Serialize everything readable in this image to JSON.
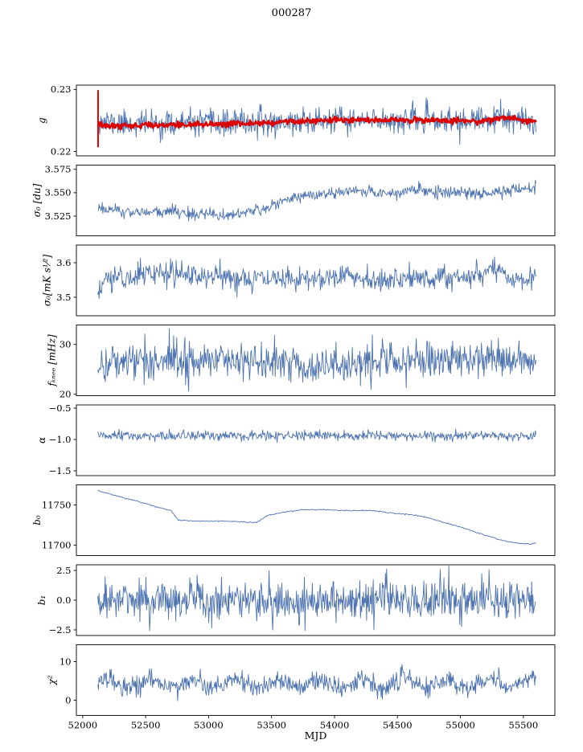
{
  "chart_data": {
    "type": "line",
    "title": "000287",
    "xlabel": "MJD",
    "xlim": [
      51950,
      55750
    ],
    "x_data_range": [
      52120,
      55600
    ],
    "xticks": [
      [
        52000,
        "52000"
      ],
      [
        52500,
        "52500"
      ],
      [
        53000,
        "53000"
      ],
      [
        53500,
        "53500"
      ],
      [
        54000,
        "54000"
      ],
      [
        54500,
        "54500"
      ],
      [
        55000,
        "55000"
      ],
      [
        55500,
        "55500"
      ]
    ],
    "colors": {
      "blue": "#4c72b0",
      "red": "#dc0000",
      "axis": "#000000"
    },
    "panels": [
      {
        "ylabel": "g",
        "ylim": [
          0.2193,
          0.2307
        ],
        "yticks": [
          [
            0.23,
            "0.23"
          ],
          [
            0.22,
            "0.22"
          ]
        ],
        "series": [
          {
            "name": "gain-fit",
            "color": "blue",
            "lw": 0.9,
            "n_points": 720,
            "seed": 11,
            "noise_std": 0.00105,
            "trend": [
              [
                52120,
                0.2253
              ],
              [
                52160,
                0.2247
              ],
              [
                52300,
                0.2245
              ],
              [
                52700,
                0.2244
              ],
              [
                53100,
                0.2245
              ],
              [
                53400,
                0.2246
              ],
              [
                53700,
                0.2248
              ],
              [
                54000,
                0.225
              ],
              [
                54200,
                0.2249
              ],
              [
                54500,
                0.2251
              ],
              [
                54800,
                0.225
              ],
              [
                55000,
                0.2248
              ],
              [
                55200,
                0.2251
              ],
              [
                55320,
                0.2253
              ],
              [
                55450,
                0.2248
              ],
              [
                55600,
                0.2247
              ]
            ]
          },
          {
            "name": "gain-smoothed",
            "color": "red",
            "lw": 2.6,
            "n_points": 620,
            "seed": 12,
            "noise_std": 0.00022,
            "trend": [
              [
                52120,
                0.2243
              ],
              [
                52200,
                0.2241
              ],
              [
                52400,
                0.2242
              ],
              [
                52700,
                0.2243
              ],
              [
                53000,
                0.2244
              ],
              [
                53300,
                0.2245
              ],
              [
                53500,
                0.2247
              ],
              [
                53700,
                0.2249
              ],
              [
                53900,
                0.225
              ],
              [
                54100,
                0.2251
              ],
              [
                54300,
                0.225
              ],
              [
                54500,
                0.2251
              ],
              [
                54700,
                0.2251
              ],
              [
                54900,
                0.225
              ],
              [
                55100,
                0.2249
              ],
              [
                55250,
                0.2251
              ],
              [
                55350,
                0.2256
              ],
              [
                55450,
                0.2252
              ],
              [
                55550,
                0.2249
              ],
              [
                55600,
                0.2248
              ]
            ]
          }
        ],
        "spikes": [
          {
            "x": 52122,
            "y0": 0.2207,
            "y1": 0.2299,
            "color": "red",
            "lw": 2
          }
        ]
      },
      {
        "ylabel": "σ₀ [du]",
        "ylim": [
          3.504,
          3.5795
        ],
        "yticks": [
          [
            3.575,
            "3.575"
          ],
          [
            3.55,
            "3.550"
          ],
          [
            3.525,
            "3.525"
          ]
        ],
        "series": [
          {
            "name": "sigma0-du",
            "color": "blue",
            "lw": 0.9,
            "n_points": 700,
            "seed": 21,
            "noise_std": 0.0033,
            "trend": [
              [
                52120,
                3.535
              ],
              [
                52250,
                3.53
              ],
              [
                52450,
                3.529
              ],
              [
                52700,
                3.53
              ],
              [
                52900,
                3.527
              ],
              [
                53100,
                3.526
              ],
              [
                53250,
                3.528
              ],
              [
                53400,
                3.532
              ],
              [
                53550,
                3.539
              ],
              [
                53700,
                3.546
              ],
              [
                53850,
                3.548
              ],
              [
                54000,
                3.549
              ],
              [
                54150,
                3.552
              ],
              [
                54300,
                3.551
              ],
              [
                54450,
                3.548
              ],
              [
                54600,
                3.552
              ],
              [
                54750,
                3.553
              ],
              [
                54900,
                3.55
              ],
              [
                55050,
                3.551
              ],
              [
                55200,
                3.549
              ],
              [
                55350,
                3.552
              ],
              [
                55600,
                3.556
              ]
            ]
          }
        ],
        "spikes": []
      },
      {
        "ylabel": "σ₀[mK s¹⁄²]",
        "ylim": [
          3.4465,
          3.6512
        ],
        "yticks": [
          [
            3.6,
            "3.6"
          ],
          [
            3.5,
            "3.5"
          ]
        ],
        "series": [
          {
            "name": "sigma0-mks",
            "color": "blue",
            "lw": 0.9,
            "n_points": 700,
            "seed": 31,
            "noise_std": 0.017,
            "trend": [
              [
                52120,
                3.5
              ],
              [
                52180,
                3.555
              ],
              [
                52400,
                3.56
              ],
              [
                52600,
                3.575
              ],
              [
                52750,
                3.565
              ],
              [
                53000,
                3.56
              ],
              [
                53300,
                3.555
              ],
              [
                53600,
                3.55
              ],
              [
                53900,
                3.56
              ],
              [
                54100,
                3.565
              ],
              [
                54300,
                3.55
              ],
              [
                54600,
                3.555
              ],
              [
                54900,
                3.555
              ],
              [
                55100,
                3.56
              ],
              [
                55250,
                3.585
              ],
              [
                55400,
                3.56
              ],
              [
                55600,
                3.555
              ]
            ]
          }
        ],
        "spikes": []
      },
      {
        "ylabel": "fₖₙₑₑ [mHz]",
        "ylim": [
          19.7,
          33.9
        ],
        "yticks": [
          [
            30,
            "30"
          ],
          [
            20,
            "20"
          ]
        ],
        "series": [
          {
            "name": "fknee",
            "color": "blue",
            "lw": 0.9,
            "n_points": 700,
            "seed": 41,
            "noise_std": 1.9,
            "trend": [
              [
                52120,
                26.0
              ],
              [
                52400,
                26.8
              ],
              [
                52900,
                27.0
              ],
              [
                53400,
                26.6
              ],
              [
                53800,
                25.8
              ],
              [
                54200,
                26.2
              ],
              [
                54600,
                26.8
              ],
              [
                55000,
                26.9
              ],
              [
                55300,
                27.2
              ],
              [
                55600,
                27.0
              ]
            ]
          }
        ],
        "spikes": []
      },
      {
        "ylabel": "α",
        "ylim": [
          -1.577,
          -0.449
        ],
        "yticks": [
          [
            -0.5,
            "−0.5"
          ],
          [
            -1.0,
            "−1.0"
          ],
          [
            -1.5,
            "−1.5"
          ]
        ],
        "series": [
          {
            "name": "alpha",
            "color": "blue",
            "lw": 0.9,
            "n_points": 700,
            "seed": 51,
            "noise_std": 0.038,
            "trend": [
              [
                52120,
                -0.945
              ],
              [
                55600,
                -0.945
              ]
            ]
          }
        ],
        "spikes": []
      },
      {
        "ylabel": "b₀",
        "ylim": [
          11687,
          11775
        ],
        "yticks": [
          [
            11750,
            "11750"
          ],
          [
            11700,
            "11700"
          ]
        ],
        "series": [
          {
            "name": "baseline-b0",
            "color": "blue",
            "lw": 0.9,
            "n_points": 520,
            "seed": 61,
            "noise_std": 0.35,
            "trend": [
              [
                52120,
                11768
              ],
              [
                52250,
                11762
              ],
              [
                52450,
                11754
              ],
              [
                52600,
                11747
              ],
              [
                52700,
                11743
              ],
              [
                52760,
                11731
              ],
              [
                52900,
                11730
              ],
              [
                53100,
                11730
              ],
              [
                53250,
                11729
              ],
              [
                53380,
                11728
              ],
              [
                53430,
                11733
              ],
              [
                53470,
                11737
              ],
              [
                53600,
                11741
              ],
              [
                53750,
                11744
              ],
              [
                53900,
                11744
              ],
              [
                54100,
                11743
              ],
              [
                54300,
                11743
              ],
              [
                54450,
                11740
              ],
              [
                54600,
                11738
              ],
              [
                54750,
                11734
              ],
              [
                54900,
                11727
              ],
              [
                55050,
                11720
              ],
              [
                55200,
                11712
              ],
              [
                55350,
                11705
              ],
              [
                55480,
                11702
              ],
              [
                55550,
                11701
              ],
              [
                55600,
                11703
              ]
            ]
          }
        ],
        "spikes": []
      },
      {
        "ylabel": "b₁",
        "ylim": [
          -2.973,
          2.973
        ],
        "yticks": [
          [
            2.5,
            "2.5"
          ],
          [
            0.0,
            "0.0"
          ],
          [
            -2.5,
            "−2.5"
          ]
        ],
        "series": [
          {
            "name": "baseline-b1",
            "color": "blue",
            "lw": 0.9,
            "n_points": 720,
            "seed": 71,
            "noise_std": 0.85,
            "trend": [
              [
                52120,
                0
              ],
              [
                55600,
                0
              ]
            ]
          }
        ],
        "spikes": []
      },
      {
        "ylabel": "χ²",
        "ylim": [
          -3.96,
          14.37
        ],
        "yticks": [
          [
            10,
            "10"
          ],
          [
            0,
            "0"
          ]
        ],
        "series": [
          {
            "name": "chi2",
            "color": "blue",
            "lw": 0.9,
            "n_points": 720,
            "seed": 81,
            "noise_std": 1.25,
            "osc_amp": 1.25,
            "osc_period": 336,
            "trend": [
              [
                52120,
                4.3
              ],
              [
                55600,
                4.4
              ]
            ]
          }
        ],
        "spikes": []
      }
    ]
  }
}
